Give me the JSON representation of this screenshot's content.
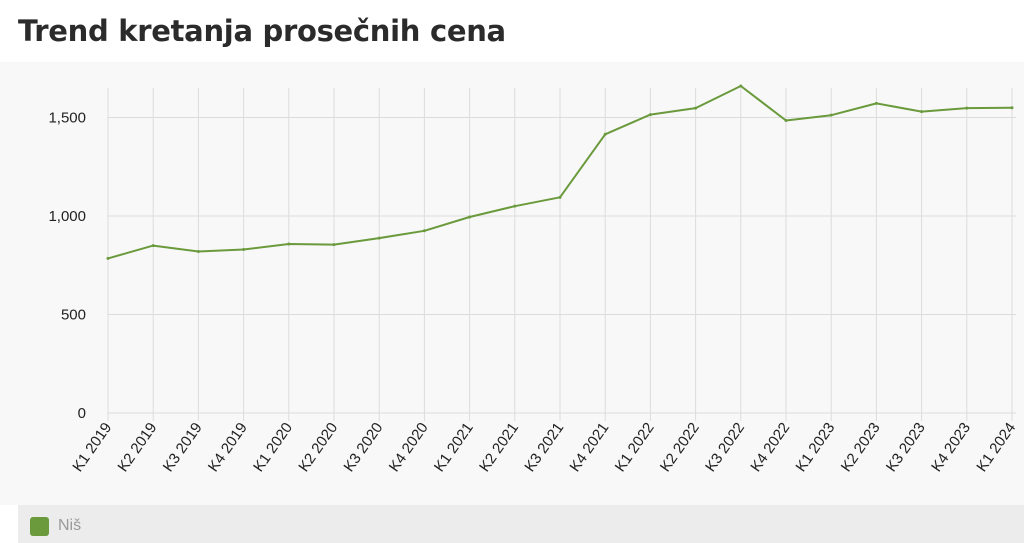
{
  "title": "Trend kretanja prosečnih cena",
  "colors": {
    "series": "#6a9a3c",
    "grid": "#dcdcdc",
    "background": "#f8f8f8"
  },
  "chart_data": {
    "type": "line",
    "title": "Trend kretanja prosečnih cena",
    "xlabel": "",
    "ylabel": "",
    "ylim": [
      0,
      1650
    ],
    "yticks": [
      0,
      500,
      1000,
      1500
    ],
    "ytick_labels": [
      "0",
      "500",
      "1,000",
      "1,500"
    ],
    "grid": true,
    "legend_position": "bottom",
    "categories": [
      "K1 2019",
      "K2 2019",
      "K3 2019",
      "K4 2019",
      "K1 2020",
      "K2 2020",
      "K3 2020",
      "K4 2020",
      "K1 2021",
      "K2 2021",
      "K3 2021",
      "K4 2021",
      "K1 2022",
      "K2 2022",
      "K3 2022",
      "K4 2022",
      "K1 2023",
      "K2 2023",
      "K3 2023",
      "K4 2023",
      "K1 2024"
    ],
    "series": [
      {
        "name": "Niš",
        "color": "#6a9a3c",
        "values": [
          785,
          850,
          820,
          830,
          858,
          855,
          888,
          925,
          995,
          1050,
          1095,
          1415,
          1515,
          1548,
          1660,
          1485,
          1512,
          1572,
          1530,
          1548,
          1550
        ]
      }
    ]
  },
  "legend": {
    "items": [
      {
        "label": "Niš",
        "color": "#6a9a3c"
      }
    ]
  }
}
